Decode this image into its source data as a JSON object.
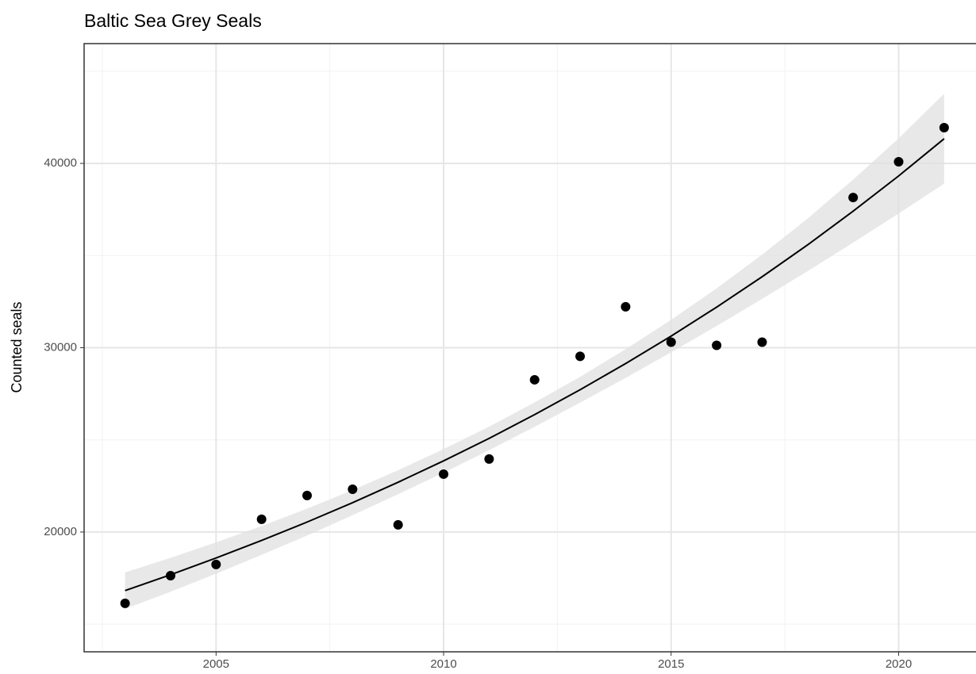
{
  "chart_data": {
    "type": "scatter",
    "title": "Baltic Sea Grey Seals",
    "y_label": "Counted seals",
    "xlim": [
      2002.1,
      2021.7
    ],
    "ylim": [
      13500,
      46500
    ],
    "xticks": [
      2005,
      2010,
      2015,
      2020
    ],
    "yticks": [
      20000,
      30000,
      40000
    ],
    "minor_xticks": [
      2002.5,
      2007.5,
      2012.5,
      2017.5
    ],
    "minor_yticks": [
      15000,
      25000,
      35000,
      45000
    ],
    "grid": true,
    "points": {
      "color": "#000000",
      "x": [
        2003,
        2004,
        2005,
        2006,
        2007,
        2008,
        2009,
        2010,
        2011,
        2012,
        2013,
        2014,
        2015,
        2016,
        2017,
        2019,
        2020,
        2021
      ],
      "values": [
        16130,
        17630,
        18240,
        20690,
        21980,
        22320,
        20390,
        23140,
        23960,
        28260,
        29530,
        32220,
        30300,
        30130,
        30300,
        38150,
        40090,
        41940
      ]
    },
    "fit": {
      "color": "#000000",
      "band_color": "#e0e0e0",
      "x": [
        2003,
        2004,
        2005,
        2006,
        2007,
        2008,
        2009,
        2010,
        2011,
        2012,
        2013,
        2014,
        2015,
        2016,
        2017,
        2018,
        2019,
        2020,
        2021
      ],
      "values": [
        16820,
        17680,
        18590,
        19540,
        20540,
        21590,
        22700,
        23860,
        25080,
        26370,
        27720,
        29140,
        30630,
        32200,
        33850,
        35580,
        37410,
        39320,
        41340
      ],
      "lower": [
        15830,
        16760,
        17740,
        18760,
        19810,
        20910,
        22050,
        23220,
        24440,
        25710,
        27020,
        28360,
        29750,
        31180,
        32650,
        34150,
        35700,
        37280,
        38900
      ],
      "upper": [
        17810,
        18600,
        19440,
        20320,
        21270,
        22270,
        23350,
        24500,
        25720,
        27030,
        28420,
        29920,
        31510,
        33220,
        35050,
        37010,
        39120,
        41360,
        43780
      ]
    }
  }
}
